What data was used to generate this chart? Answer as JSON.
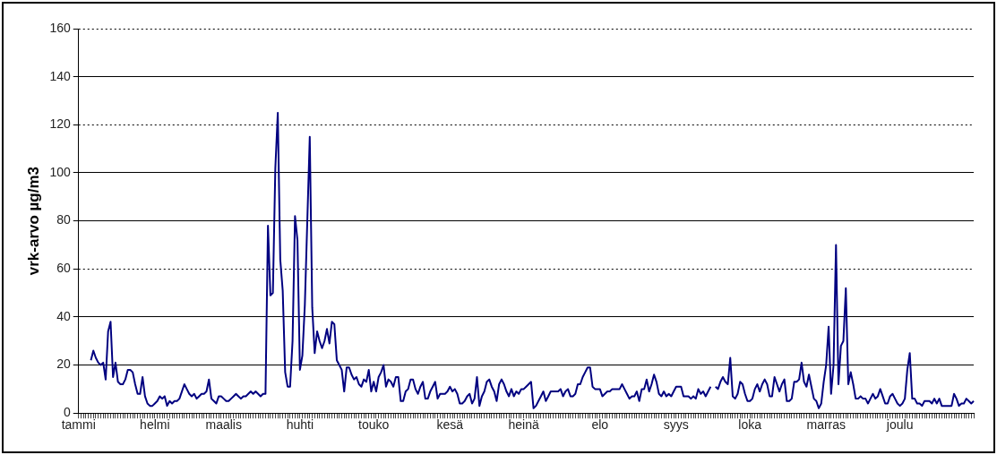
{
  "chart_data": {
    "type": "line",
    "ylabel": "vrk-arvo µg/m3",
    "categories": [
      "tammi",
      null,
      null,
      null,
      null,
      null,
      null,
      null,
      null,
      null,
      null,
      null,
      null,
      null,
      null,
      null,
      null,
      null,
      null,
      null,
      null,
      null,
      null,
      null,
      null,
      null,
      null,
      null,
      null,
      null,
      null,
      "helmi",
      null,
      null,
      null,
      null,
      null,
      null,
      null,
      null,
      null,
      null,
      null,
      null,
      null,
      null,
      null,
      null,
      null,
      null,
      null,
      null,
      null,
      null,
      null,
      null,
      null,
      null,
      null,
      "maalis",
      null,
      null,
      null,
      null,
      null,
      null,
      null,
      null,
      null,
      null,
      null,
      null,
      null,
      null,
      null,
      null,
      null,
      null,
      null,
      null,
      null,
      null,
      null,
      null,
      null,
      null,
      null,
      null,
      null,
      null,
      "huhti",
      null,
      null,
      null,
      null,
      null,
      null,
      null,
      null,
      null,
      null,
      null,
      null,
      null,
      null,
      null,
      null,
      null,
      null,
      null,
      null,
      null,
      null,
      null,
      null,
      null,
      null,
      null,
      null,
      null,
      "touko",
      null,
      null,
      null,
      null,
      null,
      null,
      null,
      null,
      null,
      null,
      null,
      null,
      null,
      null,
      null,
      null,
      null,
      null,
      null,
      null,
      null,
      null,
      null,
      null,
      null,
      null,
      null,
      null,
      null,
      null,
      "kesä",
      null,
      null,
      null,
      null,
      null,
      null,
      null,
      null,
      null,
      null,
      null,
      null,
      null,
      null,
      null,
      null,
      null,
      null,
      null,
      null,
      null,
      null,
      null,
      null,
      null,
      null,
      null,
      null,
      null,
      "heinä",
      null,
      null,
      null,
      null,
      null,
      null,
      null,
      null,
      null,
      null,
      null,
      null,
      null,
      null,
      null,
      null,
      null,
      null,
      null,
      null,
      null,
      null,
      null,
      null,
      null,
      null,
      null,
      null,
      null,
      null,
      "elo",
      null,
      null,
      null,
      null,
      null,
      null,
      null,
      null,
      null,
      null,
      null,
      null,
      null,
      null,
      null,
      null,
      null,
      null,
      null,
      null,
      null,
      null,
      null,
      null,
      null,
      null,
      null,
      null,
      null,
      null,
      "syys",
      null,
      null,
      null,
      null,
      null,
      null,
      null,
      null,
      null,
      null,
      null,
      null,
      null,
      null,
      null,
      null,
      null,
      null,
      null,
      null,
      null,
      null,
      null,
      null,
      null,
      null,
      null,
      null,
      null,
      "loka",
      null,
      null,
      null,
      null,
      null,
      null,
      null,
      null,
      null,
      null,
      null,
      null,
      null,
      null,
      null,
      null,
      null,
      null,
      null,
      null,
      null,
      null,
      null,
      null,
      null,
      null,
      null,
      null,
      null,
      null,
      "marras",
      null,
      null,
      null,
      null,
      null,
      null,
      null,
      null,
      null,
      null,
      null,
      null,
      null,
      null,
      null,
      null,
      null,
      null,
      null,
      null,
      null,
      null,
      null,
      null,
      null,
      null,
      null,
      null,
      null,
      "joulu",
      null,
      null,
      null,
      null,
      null,
      null,
      null,
      null,
      null,
      null,
      null,
      null,
      null,
      null,
      null,
      null,
      null,
      null,
      null,
      null,
      null,
      null,
      null,
      null,
      null,
      null,
      null,
      null,
      null,
      null
    ],
    "values": [
      null,
      null,
      null,
      null,
      null,
      22,
      26,
      23,
      21,
      20,
      21,
      14,
      34,
      38,
      15,
      21,
      13,
      12,
      12,
      14,
      18,
      18,
      17,
      12,
      8,
      8,
      15,
      7,
      4,
      3,
      3,
      4,
      5,
      7,
      6,
      7,
      3,
      5,
      4,
      5,
      5,
      6,
      9,
      12,
      10,
      8,
      7,
      8,
      6,
      7,
      8,
      8,
      9,
      14,
      6,
      5,
      4,
      7,
      7,
      6,
      5,
      5,
      6,
      7,
      8,
      7,
      6,
      7,
      7,
      8,
      9,
      8,
      9,
      8,
      7,
      8,
      8,
      78,
      49,
      50,
      102,
      125,
      64,
      51,
      17,
      11,
      11,
      30,
      82,
      72,
      18,
      24,
      45,
      80,
      115,
      44,
      25,
      34,
      30,
      27,
      30,
      35,
      29,
      38,
      37,
      22,
      20,
      18,
      9,
      19,
      19,
      16,
      14,
      15,
      12,
      11,
      14,
      13,
      18,
      9,
      13,
      9,
      15,
      17,
      20,
      11,
      14,
      13,
      11,
      15,
      15,
      5,
      5,
      9,
      10,
      14,
      14,
      10,
      8,
      11,
      13,
      6,
      6,
      9,
      11,
      13,
      6,
      8,
      8,
      8,
      9,
      11,
      9,
      10,
      8,
      4,
      4,
      5,
      7,
      8,
      4,
      6,
      15,
      3,
      7,
      9,
      13,
      14,
      11,
      9,
      5,
      12,
      14,
      12,
      9,
      7,
      10,
      7,
      9,
      8,
      10,
      10,
      11,
      12,
      13,
      2,
      3,
      5,
      7,
      9,
      5,
      7,
      9,
      9,
      9,
      9,
      10,
      7,
      9,
      10,
      7,
      7,
      8,
      12,
      12,
      15,
      17,
      19,
      19,
      11,
      10,
      10,
      10,
      7,
      8,
      9,
      9,
      10,
      10,
      10,
      10,
      12,
      10,
      8,
      6,
      7,
      7,
      9,
      5,
      10,
      10,
      14,
      9,
      12,
      16,
      13,
      8,
      7,
      9,
      7,
      8,
      7,
      9,
      11,
      11,
      11,
      7,
      7,
      7,
      6,
      7,
      6,
      10,
      8,
      9,
      7,
      9,
      11,
      null,
      11,
      10,
      13,
      15,
      13,
      12,
      23,
      7,
      6,
      8,
      13,
      12,
      8,
      5,
      5,
      6,
      10,
      12,
      9,
      12,
      14,
      12,
      7,
      7,
      15,
      12,
      9,
      12,
      14,
      5,
      5,
      6,
      13,
      13,
      14,
      21,
      13,
      11,
      16,
      11,
      6,
      5,
      2,
      4,
      13,
      20,
      36,
      8,
      20,
      70,
      12,
      28,
      30,
      52,
      12,
      17,
      12,
      6,
      6,
      7,
      6,
      6,
      4,
      6,
      8,
      6,
      7,
      10,
      7,
      4,
      4,
      7,
      8,
      6,
      4,
      3,
      4,
      6,
      18,
      25,
      6,
      6,
      4,
      4,
      3,
      5,
      5,
      5,
      4,
      6,
      4,
      6,
      3,
      3,
      3,
      3,
      3,
      8,
      6,
      3,
      4,
      4,
      6,
      5,
      4,
      5
    ],
    "color": "#000080",
    "ylim": [
      0,
      160
    ],
    "yticks": [
      0,
      20,
      40,
      60,
      80,
      100,
      120,
      140,
      160
    ],
    "grid": "y",
    "marker": "none",
    "line_style": "solid"
  }
}
